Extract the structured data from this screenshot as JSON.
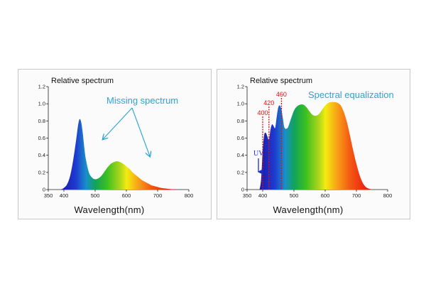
{
  "chart_data": [
    {
      "type": "area",
      "title": "Relative spectrum",
      "xlabel": "Wavelength(nm)",
      "ylabel": "Relative spectrum",
      "xlim": [
        350,
        800
      ],
      "ylim": [
        0,
        1.2
      ],
      "x_ticks": [
        "350",
        "400",
        "500",
        "600",
        "700",
        "800"
      ],
      "y_ticks": [
        "0",
        "0.2",
        "0.4",
        "0.6",
        "0.8",
        "1.0",
        "1.2"
      ],
      "x": [
        390,
        400,
        410,
        420,
        430,
        440,
        445,
        450,
        455,
        460,
        465,
        470,
        480,
        490,
        500,
        510,
        520,
        530,
        540,
        550,
        560,
        570,
        580,
        590,
        600,
        610,
        620,
        630,
        640,
        650,
        660,
        670,
        680,
        690,
        700,
        710,
        720,
        730,
        740,
        750,
        760,
        780
      ],
      "values": [
        0.0,
        0.02,
        0.06,
        0.16,
        0.35,
        0.6,
        0.74,
        0.82,
        0.79,
        0.67,
        0.5,
        0.36,
        0.2,
        0.14,
        0.12,
        0.13,
        0.16,
        0.21,
        0.26,
        0.3,
        0.32,
        0.33,
        0.32,
        0.3,
        0.27,
        0.24,
        0.2,
        0.17,
        0.14,
        0.11,
        0.09,
        0.07,
        0.05,
        0.04,
        0.03,
        0.02,
        0.015,
        0.01,
        0.006,
        0.003,
        0.001,
        0.0
      ],
      "annotation": "Missing spectrum",
      "annotation_arrows_to_x": [
        525,
        675
      ]
    },
    {
      "type": "area",
      "title": "Relative spectrum",
      "xlabel": "Wavelength(nm)",
      "ylabel": "Relative spectrum",
      "xlim": [
        350,
        800
      ],
      "ylim": [
        0,
        1.2
      ],
      "x_ticks": [
        "350",
        "400",
        "500",
        "600",
        "700",
        "800"
      ],
      "y_ticks": [
        "0",
        "0.2",
        "0.4",
        "0.6",
        "0.8",
        "1.0",
        "1.2"
      ],
      "x": [
        390,
        395,
        400,
        405,
        410,
        415,
        420,
        425,
        430,
        435,
        440,
        445,
        450,
        455,
        460,
        465,
        470,
        480,
        490,
        500,
        510,
        520,
        530,
        540,
        550,
        560,
        570,
        580,
        590,
        600,
        610,
        620,
        630,
        640,
        650,
        660,
        670,
        680,
        690,
        700,
        710,
        720,
        730,
        740,
        750
      ],
      "values": [
        0.0,
        0.12,
        0.45,
        0.64,
        0.66,
        0.62,
        0.58,
        0.7,
        0.76,
        0.74,
        0.72,
        0.85,
        0.96,
        0.98,
        0.93,
        0.82,
        0.72,
        0.72,
        0.82,
        0.92,
        0.97,
        0.99,
        0.99,
        0.96,
        0.91,
        0.87,
        0.86,
        0.88,
        0.93,
        0.98,
        1.01,
        1.02,
        1.02,
        1.01,
        0.98,
        0.9,
        0.78,
        0.62,
        0.45,
        0.3,
        0.17,
        0.08,
        0.03,
        0.01,
        0.0
      ],
      "annotation": "Spectral equalization",
      "markers": [
        {
          "label": "400",
          "x": 400
        },
        {
          "label": "420",
          "x": 420
        },
        {
          "label": "460",
          "x": 460
        }
      ],
      "uv_label": "UV"
    }
  ]
}
